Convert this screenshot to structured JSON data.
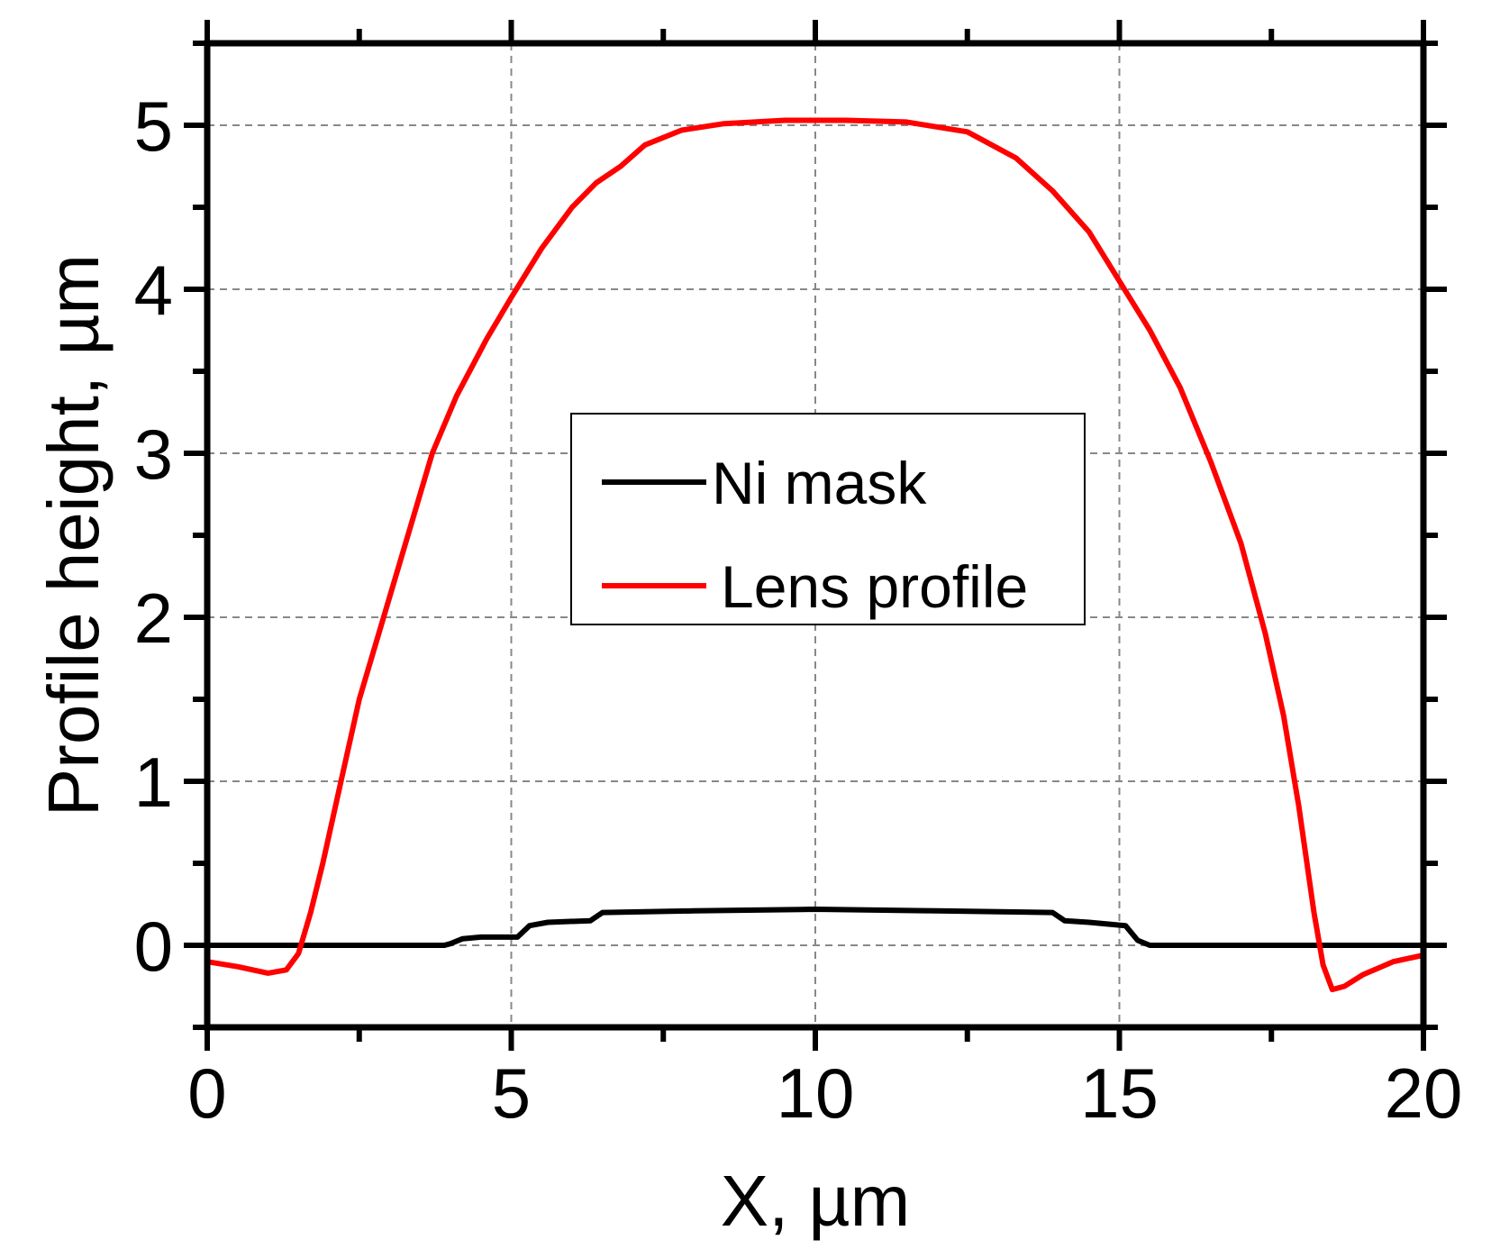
{
  "chart_data": {
    "type": "line",
    "xlabel": "X, µm",
    "ylabel": "Profile height, µm",
    "xlim": [
      0,
      20
    ],
    "ylim": [
      -0.5,
      5.5
    ],
    "x_ticks": [
      0,
      5,
      10,
      15,
      20
    ],
    "y_ticks": [
      0,
      1,
      2,
      3,
      4,
      5
    ],
    "grid": true,
    "legend_position": "center",
    "series": [
      {
        "name": "Ni mask",
        "color": "#000000",
        "points": [
          [
            0,
            0
          ],
          [
            3.9,
            0
          ],
          [
            4.0,
            0.01
          ],
          [
            4.2,
            0.04
          ],
          [
            4.5,
            0.05
          ],
          [
            5.1,
            0.05
          ],
          [
            5.3,
            0.12
          ],
          [
            5.6,
            0.14
          ],
          [
            6.3,
            0.15
          ],
          [
            6.5,
            0.2
          ],
          [
            8,
            0.21
          ],
          [
            10,
            0.22
          ],
          [
            12,
            0.21
          ],
          [
            13.9,
            0.2
          ],
          [
            14.1,
            0.15
          ],
          [
            14.5,
            0.14
          ],
          [
            15.1,
            0.12
          ],
          [
            15.3,
            0.03
          ],
          [
            15.5,
            0
          ],
          [
            20,
            0
          ]
        ]
      },
      {
        "name": "Lens profile",
        "color": "#ff0000",
        "points": [
          [
            0,
            -0.1
          ],
          [
            0.5,
            -0.13
          ],
          [
            1.0,
            -0.17
          ],
          [
            1.3,
            -0.15
          ],
          [
            1.5,
            -0.05
          ],
          [
            1.7,
            0.2
          ],
          [
            1.9,
            0.5
          ],
          [
            2.2,
            1.0
          ],
          [
            2.5,
            1.5
          ],
          [
            2.9,
            2.0
          ],
          [
            3.3,
            2.5
          ],
          [
            3.7,
            3.0
          ],
          [
            4.1,
            3.35
          ],
          [
            4.6,
            3.7
          ],
          [
            5.0,
            3.95
          ],
          [
            5.5,
            4.25
          ],
          [
            6.0,
            4.5
          ],
          [
            6.4,
            4.65
          ],
          [
            6.8,
            4.75
          ],
          [
            7.2,
            4.88
          ],
          [
            7.8,
            4.97
          ],
          [
            8.5,
            5.01
          ],
          [
            9.5,
            5.03
          ],
          [
            10.5,
            5.03
          ],
          [
            11.5,
            5.02
          ],
          [
            12.5,
            4.96
          ],
          [
            13.3,
            4.8
          ],
          [
            13.9,
            4.6
          ],
          [
            14.5,
            4.35
          ],
          [
            15.0,
            4.05
          ],
          [
            15.5,
            3.75
          ],
          [
            16.0,
            3.4
          ],
          [
            16.5,
            2.95
          ],
          [
            17.0,
            2.45
          ],
          [
            17.4,
            1.9
          ],
          [
            17.7,
            1.4
          ],
          [
            17.95,
            0.85
          ],
          [
            18.2,
            0.2
          ],
          [
            18.35,
            -0.12
          ],
          [
            18.5,
            -0.27
          ],
          [
            18.7,
            -0.25
          ],
          [
            19.0,
            -0.18
          ],
          [
            19.5,
            -0.1
          ],
          [
            20,
            -0.06
          ]
        ]
      }
    ]
  }
}
